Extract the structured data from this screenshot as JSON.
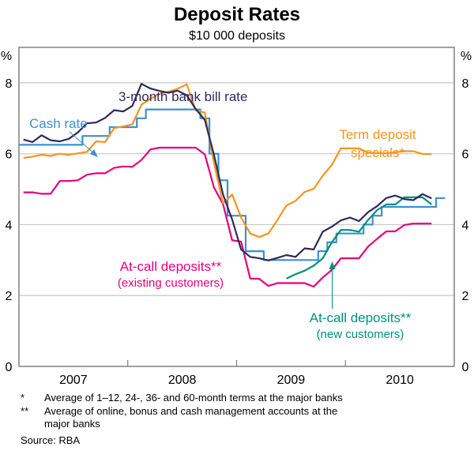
{
  "chart_data": {
    "type": "line",
    "title": "Deposit Rates",
    "subtitle": "$10 000 deposits",
    "ylabel_left": "%",
    "ylabel_right": "%",
    "ylim": [
      0,
      9
    ],
    "yticks": [
      0,
      2,
      4,
      6,
      8
    ],
    "xlim": [
      "2007-01",
      "2010-12"
    ],
    "x_start_month": "2007-01",
    "year_labels": [
      "2007",
      "2008",
      "2009",
      "2010"
    ],
    "grid": true,
    "series": [
      {
        "name": "3-month bank bill rate",
        "color": "#2e2a5e",
        "start": "2007-01",
        "values": [
          6.4,
          6.33,
          6.52,
          6.38,
          6.35,
          6.42,
          6.6,
          6.86,
          6.88,
          7.01,
          7.23,
          7.19,
          7.35,
          7.97,
          7.84,
          7.77,
          7.72,
          7.78,
          7.65,
          7.26,
          6.95,
          5.97,
          4.85,
          4.15,
          3.3,
          3.09,
          3.05,
          2.99,
          3.06,
          3.14,
          3.09,
          3.33,
          3.3,
          3.8,
          3.94,
          4.12,
          4.2,
          4.1,
          4.35,
          4.52,
          4.75,
          4.82,
          4.72,
          4.69,
          4.86,
          4.74
        ]
      },
      {
        "name": "Term deposit specials*",
        "color": "#f7941d",
        "start": "2007-01",
        "values": [
          5.88,
          5.92,
          5.97,
          5.94,
          6.0,
          5.97,
          6.01,
          6.05,
          6.35,
          6.33,
          6.72,
          6.77,
          6.83,
          7.38,
          7.55,
          7.69,
          7.75,
          7.83,
          7.96,
          7.22,
          7.16,
          5.74,
          4.6,
          4.85,
          4.2,
          3.75,
          3.65,
          3.75,
          4.13,
          4.54,
          4.67,
          4.92,
          5.01,
          5.38,
          5.68,
          6.15,
          6.15,
          6.15,
          6.03,
          6.02,
          6.01,
          6.04,
          6.07,
          6.07,
          5.99,
          5.99
        ]
      },
      {
        "name": "At-call deposits** (existing customers)",
        "color": "#e6007e",
        "start": "2007-01",
        "values": [
          4.91,
          4.91,
          4.87,
          4.87,
          5.23,
          5.23,
          5.25,
          5.41,
          5.45,
          5.45,
          5.6,
          5.64,
          5.63,
          5.82,
          6.12,
          6.17,
          6.17,
          6.17,
          6.17,
          6.17,
          5.98,
          5.05,
          4.58,
          3.56,
          3.52,
          2.48,
          2.47,
          2.27,
          2.35,
          2.35,
          2.35,
          2.35,
          2.25,
          2.51,
          2.72,
          3.05,
          3.05,
          3.05,
          3.38,
          3.6,
          3.81,
          3.81,
          3.99,
          4.03,
          4.03,
          4.03
        ]
      },
      {
        "name": "At-call deposits** (new customers)",
        "color": "#00917c",
        "start": "2009-06",
        "values": [
          2.48,
          2.6,
          2.7,
          2.84,
          3.05,
          3.5,
          3.85,
          3.85,
          3.8,
          4.13,
          4.41,
          4.57,
          4.57,
          4.77,
          4.77,
          4.77,
          4.57
        ]
      },
      {
        "name": "Cash rate",
        "color": "#3c8fcf",
        "type": "step",
        "steps": [
          {
            "from": "2007-01",
            "rate": 6.25
          },
          {
            "from": "2007-08",
            "rate": 6.5
          },
          {
            "from": "2007-11",
            "rate": 6.75
          },
          {
            "from": "2008-02",
            "rate": 7.0
          },
          {
            "from": "2008-03",
            "rate": 7.25
          },
          {
            "from": "2008-09",
            "rate": 7.0
          },
          {
            "from": "2008-10",
            "rate": 6.0
          },
          {
            "from": "2008-11",
            "rate": 5.25
          },
          {
            "from": "2008-12",
            "rate": 4.25
          },
          {
            "from": "2009-02",
            "rate": 3.25
          },
          {
            "from": "2009-04",
            "rate": 3.0
          },
          {
            "from": "2009-10",
            "rate": 3.25
          },
          {
            "from": "2009-11",
            "rate": 3.5
          },
          {
            "from": "2009-12",
            "rate": 3.75
          },
          {
            "from": "2010-03",
            "rate": 4.0
          },
          {
            "from": "2010-04",
            "rate": 4.25
          },
          {
            "from": "2010-05",
            "rate": 4.5
          },
          {
            "from": "2010-11",
            "rate": 4.75
          }
        ],
        "end": "2010-12"
      }
    ],
    "annotations": {
      "bank_bill": "3-month bank bill rate",
      "cash_rate": "Cash rate",
      "term_line1": "Term deposit",
      "term_line2": "specials*",
      "atcall_existing_line1": "At-call deposits**",
      "atcall_existing_line2": "(existing customers)",
      "atcall_new_line1": "At-call deposits**",
      "atcall_new_line2": "(new customers)"
    }
  },
  "footnotes": {
    "note1_marker": "*",
    "note1_text": "Average of 1–12, 24-, 36- and 60-month terms at the major banks",
    "note2_marker": "**",
    "note2_text_line1": "Average of online, bonus and cash management accounts at the",
    "note2_text_line2": "major banks",
    "source": "Source: RBA"
  }
}
